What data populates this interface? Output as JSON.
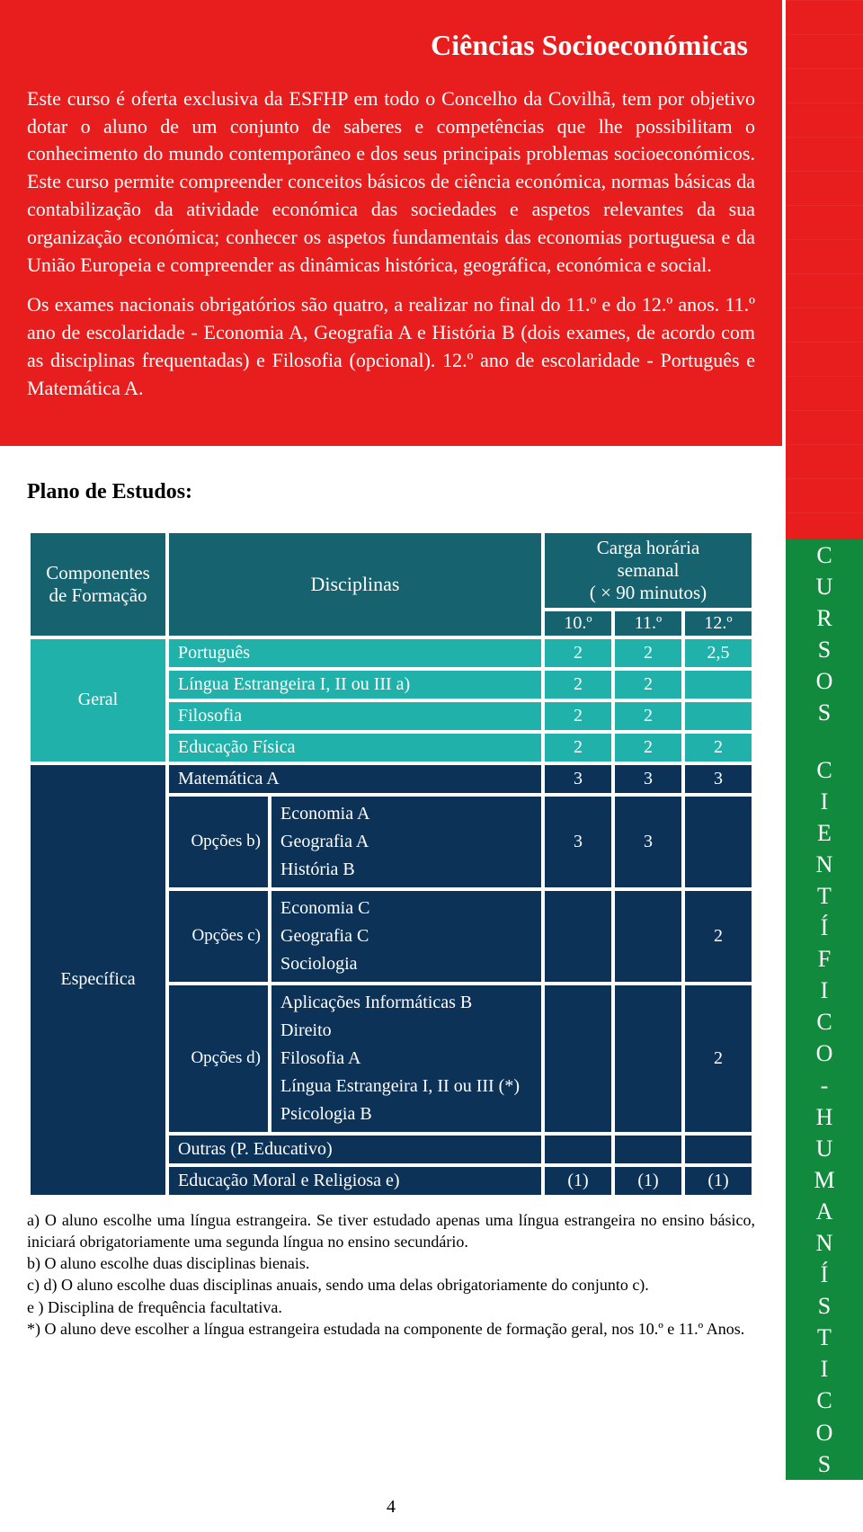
{
  "colors": {
    "red": "#e81e1e",
    "green": "#118a3d",
    "teal_dark": "#16626e",
    "teal_light": "#20b2aa",
    "navy": "#0d3257",
    "white": "#ffffff",
    "black": "#000000"
  },
  "title": "Ciências Socioeconómicas",
  "intro_p1": "Este curso é oferta exclusiva da ESFHP em todo o Concelho da Covilhã, tem por objetivo dotar o aluno de um conjunto de saberes e competências que lhe possibilitam o conhecimento do mundo contemporâneo e dos seus principais problemas socioeconómicos. Este curso permite compreender conceitos básicos de ciência económica, normas básicas da contabilização da atividade económica das sociedades e aspetos relevantes da sua organização económica; conhecer os aspetos fundamentais das economias portuguesa e da União Europeia e compreender as dinâmicas histórica, geográfica, económica e social.",
  "intro_p2": "Os exames nacionais obrigatórios são quatro, a realizar no final do 11.º e do 12.º anos. 11.º ano de escolaridade - Economia A, Geografia A e História B (dois exames, de acordo com as disciplinas frequentadas) e Filosofia (opcional). 12.º ano de escolaridade - Português e Matemática A.",
  "plano_heading": "Plano de Estudos:",
  "headers": {
    "componentes": "Componentes de Formação",
    "disciplinas": "Disciplinas",
    "carga": "Carga horária semanal\n( × 90 minutos)",
    "y10": "10.º",
    "y11": "11.º",
    "y12": "12.º"
  },
  "sections": {
    "geral": "Geral",
    "especifica": "Específica"
  },
  "geral_rows": [
    {
      "name": "Português",
      "h": [
        "2",
        "2",
        "2,5"
      ]
    },
    {
      "name": "Língua Estrangeira I, II ou III a)",
      "h": [
        "2",
        "2",
        ""
      ]
    },
    {
      "name": "Filosofia",
      "h": [
        "2",
        "2",
        ""
      ]
    },
    {
      "name": "Educação Física",
      "h": [
        "2",
        "2",
        "2"
      ]
    }
  ],
  "matA": {
    "name": "Matemática A",
    "h": [
      "3",
      "3",
      "3"
    ]
  },
  "opcB": {
    "label": "Opções b)",
    "items": [
      "Economia A",
      "Geografia A",
      "História B"
    ],
    "h": [
      "3",
      "3",
      ""
    ]
  },
  "opcC": {
    "label": "Opções c)",
    "items": [
      "Economia C",
      "Geografia C",
      "Sociologia"
    ],
    "h": [
      "",
      "",
      "2"
    ]
  },
  "opcD": {
    "label": "Opções d)",
    "items": [
      "Aplicações Informáticas B",
      "Direito",
      "Filosofia A",
      "Língua Estrangeira I, II ou III (*)",
      "Psicologia B"
    ],
    "h": [
      "",
      "",
      "2"
    ]
  },
  "outras": "Outras (P. Educativo)",
  "edmoral": {
    "name": "Educação Moral e Religiosa e)",
    "h": [
      "(1)",
      "(1)",
      "(1)"
    ]
  },
  "notes": [
    "a) O aluno escolhe uma língua estrangeira. Se tiver estudado apenas uma língua estrangeira no ensino básico, iniciará obrigatoriamente uma segunda língua no ensino secundário.",
    "b) O aluno escolhe duas disciplinas bienais.",
    "c) d) O aluno escolhe duas disciplinas anuais, sendo uma delas obrigatoriamente do conjunto c).",
    "e ) Disciplina de frequência facultativa.",
    "*) O aluno deve escolher a língua estrangeira estudada na componente de formação geral, nos 10.º e 11.º Anos."
  ],
  "sidebar_text_top": "CURSOS",
  "sidebar_text_bottom": "CIENTÍFICO-HUMANÍSTICOS",
  "page_number": "4"
}
